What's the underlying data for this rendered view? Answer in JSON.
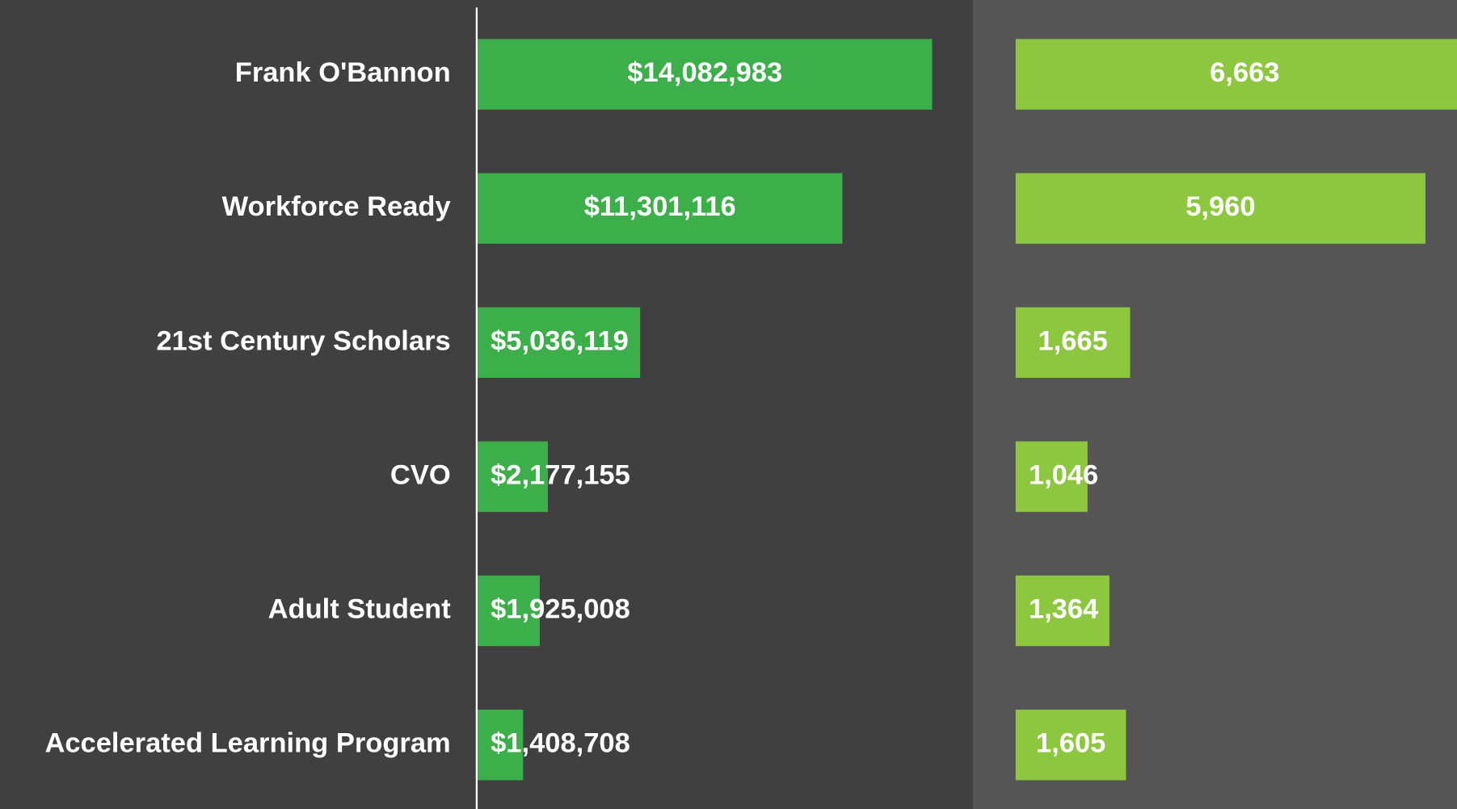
{
  "chart_data": [
    {
      "type": "bar",
      "orientation": "horizontal",
      "color": "#3daf4a",
      "categories": [
        "Frank O'Bannon",
        "Workforce Ready",
        "21st Century Scholars",
        "CVO",
        "Adult Student",
        "Accelerated Learning Program"
      ],
      "values": [
        14082983,
        11301116,
        5036119,
        2177155,
        1925008,
        1408708
      ],
      "value_labels": [
        "$14,082,983",
        "$11,301,116",
        "$5,036,119",
        "$2,177,155",
        "$1,925,008",
        "$1,408,708"
      ],
      "xlim": [
        0,
        15000000
      ]
    },
    {
      "type": "bar",
      "orientation": "horizontal",
      "color": "#8dc63f",
      "values": [
        6663,
        5960,
        1665,
        1046,
        1364,
        1605
      ],
      "value_labels": [
        "6,663",
        "5,960",
        "1,665",
        "1,046",
        "1,364",
        "1,605"
      ],
      "xlim": [
        0,
        7000
      ]
    }
  ]
}
